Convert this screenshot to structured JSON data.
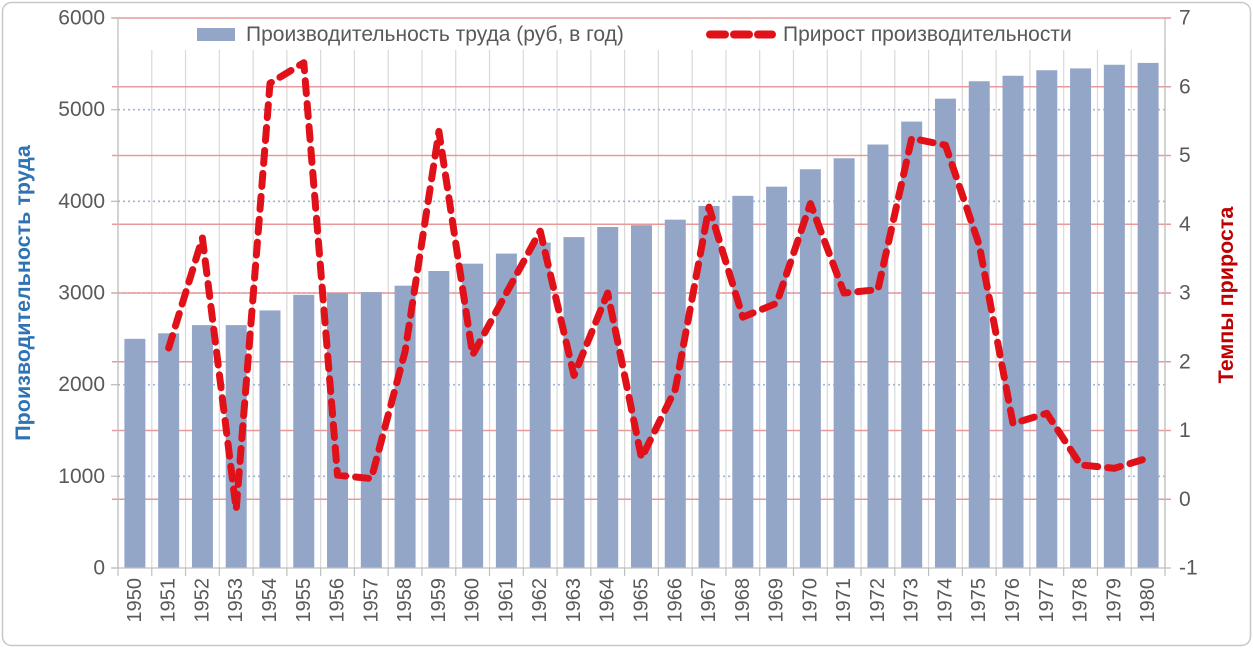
{
  "chart_data": {
    "type": "combo",
    "title": "",
    "categories": [
      "1950",
      "1951",
      "1952",
      "1953",
      "1954",
      "1955",
      "1956",
      "1957",
      "1958",
      "1959",
      "1960",
      "1961",
      "1962",
      "1963",
      "1964",
      "1965",
      "1966",
      "1967",
      "1968",
      "1969",
      "1970",
      "1971",
      "1972",
      "1973",
      "1974",
      "1975",
      "1976",
      "1977",
      "1978",
      "1979",
      "1980"
    ],
    "series": [
      {
        "name": "Производительность труда (руб, в год)",
        "type": "bar",
        "axis": "left",
        "color": "#94a6c8",
        "values": [
          2500,
          2560,
          2650,
          2650,
          2810,
          2980,
          3000,
          3010,
          3080,
          3240,
          3320,
          3430,
          3550,
          3610,
          3720,
          3740,
          3800,
          3950,
          4060,
          4160,
          4350,
          4470,
          4620,
          4870,
          5120,
          5310,
          5370,
          5430,
          5450,
          5490,
          5510
        ]
      },
      {
        "name": "Прирост производительности",
        "type": "line",
        "axis": "right",
        "color": "#e01119",
        "dashed": true,
        "values": [
          null,
          2.2,
          3.8,
          -0.15,
          6.05,
          6.35,
          0.35,
          0.3,
          2.15,
          5.35,
          2.1,
          3.0,
          3.9,
          1.8,
          3.0,
          0.6,
          1.6,
          4.25,
          2.65,
          2.85,
          4.3,
          3.0,
          3.05,
          5.25,
          5.15,
          3.7,
          1.1,
          1.25,
          0.5,
          0.45,
          0.6
        ]
      }
    ],
    "left_axis": {
      "title": "Производительность труда",
      "min": 0,
      "max": 6000,
      "step": 1000,
      "title_color": "#2e74b5",
      "tick_labels": [
        "0",
        "1000",
        "2000",
        "3000",
        "4000",
        "5000",
        "6000"
      ]
    },
    "right_axis": {
      "title": "Темпы прироста",
      "min": -1,
      "max": 7,
      "step": 1,
      "title_color": "#c00000",
      "tick_labels": [
        "-1",
        "0",
        "1",
        "2",
        "3",
        "4",
        "5",
        "6",
        "7"
      ]
    },
    "legend_position": "top",
    "grid": {
      "vertical_color": "#d9d9d9",
      "horizontal_dotted_color": "#a0b5d3",
      "horizontal_solid_color": "#e89999",
      "axis_color": "#bfbfbf",
      "tick_label_color": "#595959"
    }
  }
}
